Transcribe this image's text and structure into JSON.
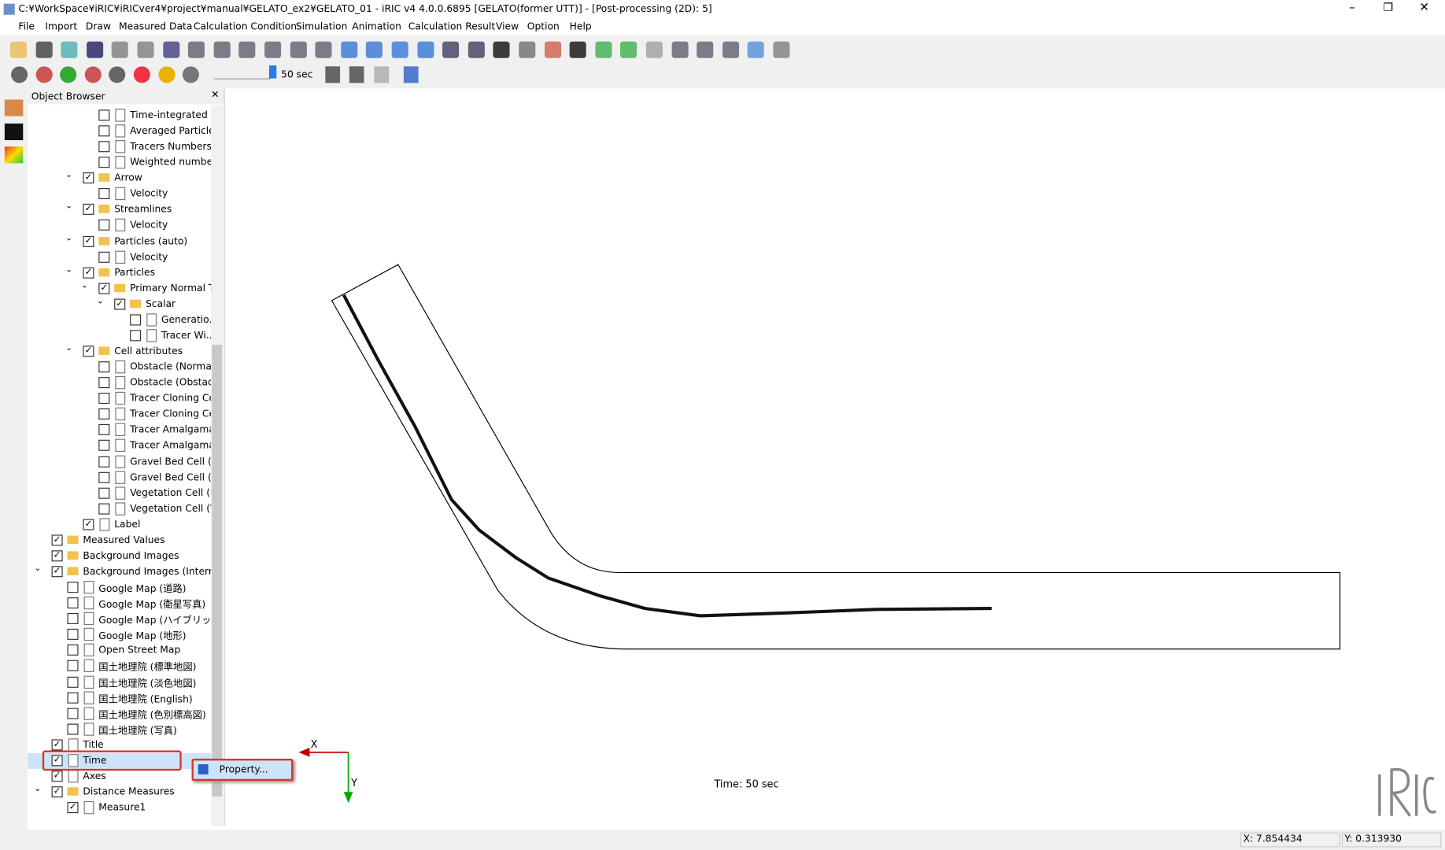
{
  "window": {
    "title": "C:¥WorkSpace¥iRIC¥iRICver4¥project¥manual¥GELATO_ex2¥GELATO_01 - iRIC v4 4.0.0.6895 [GELATO(former UTT)] - [Post-processing (2D): 5]"
  },
  "menu": [
    "File",
    "Import",
    "Draw",
    "Measured Data",
    "Calculation Condition",
    "Simulation",
    "Animation",
    "Calculation Result",
    "View",
    "Option",
    "Help"
  ],
  "toolbar": {
    "time_label": "50 sec"
  },
  "object_browser": {
    "title": "Object Browser",
    "items": [
      {
        "label": "Time-integrated P...",
        "depth": 3,
        "checked": false,
        "kind": "file"
      },
      {
        "label": "Averaged Particle...",
        "depth": 3,
        "checked": false,
        "kind": "file"
      },
      {
        "label": "Tracers Numbers(...",
        "depth": 3,
        "checked": false,
        "kind": "file"
      },
      {
        "label": "Weighted numbe...",
        "depth": 3,
        "checked": false,
        "kind": "file"
      },
      {
        "label": "Arrow",
        "depth": 2,
        "checked": true,
        "kind": "folder",
        "expanded": true
      },
      {
        "label": "Velocity",
        "depth": 3,
        "checked": false,
        "kind": "file"
      },
      {
        "label": "Streamlines",
        "depth": 2,
        "checked": true,
        "kind": "folder",
        "expanded": true
      },
      {
        "label": "Velocity",
        "depth": 3,
        "checked": false,
        "kind": "file"
      },
      {
        "label": "Particles (auto)",
        "depth": 2,
        "checked": true,
        "kind": "folder",
        "expanded": true
      },
      {
        "label": "Velocity",
        "depth": 3,
        "checked": false,
        "kind": "file"
      },
      {
        "label": "Particles",
        "depth": 2,
        "checked": true,
        "kind": "folder",
        "expanded": true
      },
      {
        "label": "Primary Normal Tr...",
        "depth": 3,
        "checked": true,
        "kind": "folder",
        "expanded": true
      },
      {
        "label": "Scalar",
        "depth": 4,
        "checked": true,
        "kind": "folder",
        "expanded": true
      },
      {
        "label": "Generatio...",
        "depth": 5,
        "checked": false,
        "kind": "file"
      },
      {
        "label": "Tracer Wi...",
        "depth": 5,
        "checked": false,
        "kind": "file"
      },
      {
        "label": "Cell attributes",
        "depth": 2,
        "checked": true,
        "kind": "folder",
        "expanded": true
      },
      {
        "label": "Obstacle (Normal...",
        "depth": 3,
        "checked": false,
        "kind": "file"
      },
      {
        "label": "Obstacle (Obstacle)",
        "depth": 3,
        "checked": false,
        "kind": "file"
      },
      {
        "label": "Tracer Cloning Cel...",
        "depth": 3,
        "checked": false,
        "kind": "file"
      },
      {
        "label": "Tracer Cloning Cel...",
        "depth": 3,
        "checked": false,
        "kind": "file"
      },
      {
        "label": "Tracer Amalgamat...",
        "depth": 3,
        "checked": false,
        "kind": "file"
      },
      {
        "label": "Tracer Amalgamat...",
        "depth": 3,
        "checked": false,
        "kind": "file"
      },
      {
        "label": "Gravel Bed Cell (N...",
        "depth": 3,
        "checked": false,
        "kind": "file"
      },
      {
        "label": "Gravel Bed Cell (G...",
        "depth": 3,
        "checked": false,
        "kind": "file"
      },
      {
        "label": "Vegetation Cell (N...",
        "depth": 3,
        "checked": false,
        "kind": "file"
      },
      {
        "label": "Vegetation Cell (V...",
        "depth": 3,
        "checked": false,
        "kind": "file"
      },
      {
        "label": "Label",
        "depth": 2,
        "checked": true,
        "kind": "file"
      },
      {
        "label": "Measured Values",
        "depth": 0,
        "checked": true,
        "kind": "folder"
      },
      {
        "label": "Background Images",
        "depth": 0,
        "checked": true,
        "kind": "folder"
      },
      {
        "label": "Background Images (Internet)",
        "depth": 0,
        "checked": true,
        "kind": "folder",
        "expanded": true
      },
      {
        "label": "Google Map (道路)",
        "depth": 1,
        "checked": false,
        "kind": "file"
      },
      {
        "label": "Google Map (衛星写真)",
        "depth": 1,
        "checked": false,
        "kind": "file"
      },
      {
        "label": "Google Map (ハイブリッド)",
        "depth": 1,
        "checked": false,
        "kind": "file"
      },
      {
        "label": "Google Map (地形)",
        "depth": 1,
        "checked": false,
        "kind": "file"
      },
      {
        "label": "Open Street Map",
        "depth": 1,
        "checked": false,
        "kind": "file"
      },
      {
        "label": "国土地理院 (標準地図)",
        "depth": 1,
        "checked": false,
        "kind": "file"
      },
      {
        "label": "国土地理院 (淡色地図)",
        "depth": 1,
        "checked": false,
        "kind": "file"
      },
      {
        "label": "国土地理院 (English)",
        "depth": 1,
        "checked": false,
        "kind": "file"
      },
      {
        "label": "国土地理院 (色別標高図)",
        "depth": 1,
        "checked": false,
        "kind": "file"
      },
      {
        "label": "国土地理院 (写真)",
        "depth": 1,
        "checked": false,
        "kind": "file"
      },
      {
        "label": "Title",
        "depth": 0,
        "checked": true,
        "kind": "file"
      },
      {
        "label": "Time",
        "depth": 0,
        "checked": true,
        "kind": "file",
        "selected": true
      },
      {
        "label": "Axes",
        "depth": 0,
        "checked": true,
        "kind": "file"
      },
      {
        "label": "Distance Measures",
        "depth": 0,
        "checked": true,
        "kind": "folder",
        "expanded": true
      },
      {
        "label": "Measure1",
        "depth": 1,
        "checked": true,
        "kind": "file"
      }
    ]
  },
  "context_menu": {
    "item": "Property..."
  },
  "canvas": {
    "time_text": "Time: 50 sec",
    "axis_x": "X",
    "axis_y": "Y"
  },
  "status_bar": {
    "x": "X: 7.854434",
    "y": "Y: 0.313930"
  }
}
